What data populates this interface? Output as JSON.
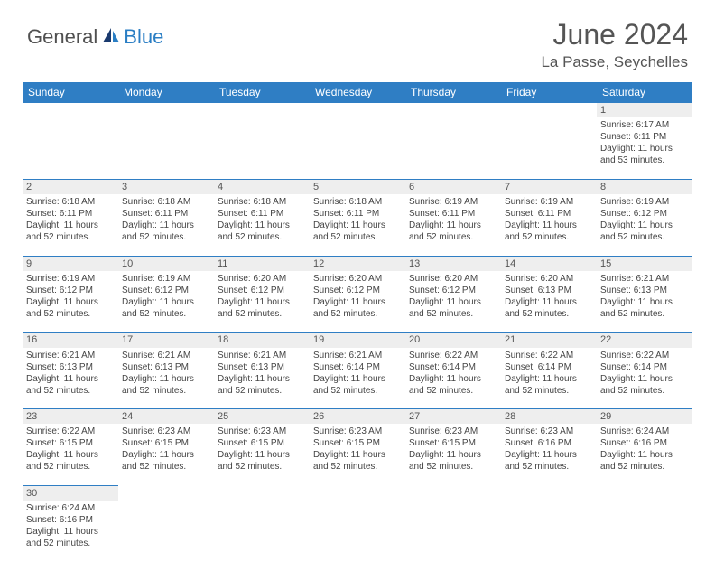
{
  "logo": {
    "part1": "General",
    "part2": "Blue"
  },
  "title": "June 2024",
  "location": "La Passe, Seychelles",
  "colors": {
    "header_bg": "#2f7ec4",
    "header_text": "#ffffff",
    "daynum_bg": "#eeeeee",
    "text": "#444444",
    "logo_gray": "#505050",
    "logo_blue": "#2a7ec4"
  },
  "weekdays": [
    "Sunday",
    "Monday",
    "Tuesday",
    "Wednesday",
    "Thursday",
    "Friday",
    "Saturday"
  ],
  "weeks": [
    [
      null,
      null,
      null,
      null,
      null,
      null,
      {
        "d": "1",
        "sr": "Sunrise: 6:17 AM",
        "ss": "Sunset: 6:11 PM",
        "dl": "Daylight: 11 hours and 53 minutes."
      }
    ],
    [
      {
        "d": "2",
        "sr": "Sunrise: 6:18 AM",
        "ss": "Sunset: 6:11 PM",
        "dl": "Daylight: 11 hours and 52 minutes."
      },
      {
        "d": "3",
        "sr": "Sunrise: 6:18 AM",
        "ss": "Sunset: 6:11 PM",
        "dl": "Daylight: 11 hours and 52 minutes."
      },
      {
        "d": "4",
        "sr": "Sunrise: 6:18 AM",
        "ss": "Sunset: 6:11 PM",
        "dl": "Daylight: 11 hours and 52 minutes."
      },
      {
        "d": "5",
        "sr": "Sunrise: 6:18 AM",
        "ss": "Sunset: 6:11 PM",
        "dl": "Daylight: 11 hours and 52 minutes."
      },
      {
        "d": "6",
        "sr": "Sunrise: 6:19 AM",
        "ss": "Sunset: 6:11 PM",
        "dl": "Daylight: 11 hours and 52 minutes."
      },
      {
        "d": "7",
        "sr": "Sunrise: 6:19 AM",
        "ss": "Sunset: 6:11 PM",
        "dl": "Daylight: 11 hours and 52 minutes."
      },
      {
        "d": "8",
        "sr": "Sunrise: 6:19 AM",
        "ss": "Sunset: 6:12 PM",
        "dl": "Daylight: 11 hours and 52 minutes."
      }
    ],
    [
      {
        "d": "9",
        "sr": "Sunrise: 6:19 AM",
        "ss": "Sunset: 6:12 PM",
        "dl": "Daylight: 11 hours and 52 minutes."
      },
      {
        "d": "10",
        "sr": "Sunrise: 6:19 AM",
        "ss": "Sunset: 6:12 PM",
        "dl": "Daylight: 11 hours and 52 minutes."
      },
      {
        "d": "11",
        "sr": "Sunrise: 6:20 AM",
        "ss": "Sunset: 6:12 PM",
        "dl": "Daylight: 11 hours and 52 minutes."
      },
      {
        "d": "12",
        "sr": "Sunrise: 6:20 AM",
        "ss": "Sunset: 6:12 PM",
        "dl": "Daylight: 11 hours and 52 minutes."
      },
      {
        "d": "13",
        "sr": "Sunrise: 6:20 AM",
        "ss": "Sunset: 6:12 PM",
        "dl": "Daylight: 11 hours and 52 minutes."
      },
      {
        "d": "14",
        "sr": "Sunrise: 6:20 AM",
        "ss": "Sunset: 6:13 PM",
        "dl": "Daylight: 11 hours and 52 minutes."
      },
      {
        "d": "15",
        "sr": "Sunrise: 6:21 AM",
        "ss": "Sunset: 6:13 PM",
        "dl": "Daylight: 11 hours and 52 minutes."
      }
    ],
    [
      {
        "d": "16",
        "sr": "Sunrise: 6:21 AM",
        "ss": "Sunset: 6:13 PM",
        "dl": "Daylight: 11 hours and 52 minutes."
      },
      {
        "d": "17",
        "sr": "Sunrise: 6:21 AM",
        "ss": "Sunset: 6:13 PM",
        "dl": "Daylight: 11 hours and 52 minutes."
      },
      {
        "d": "18",
        "sr": "Sunrise: 6:21 AM",
        "ss": "Sunset: 6:13 PM",
        "dl": "Daylight: 11 hours and 52 minutes."
      },
      {
        "d": "19",
        "sr": "Sunrise: 6:21 AM",
        "ss": "Sunset: 6:14 PM",
        "dl": "Daylight: 11 hours and 52 minutes."
      },
      {
        "d": "20",
        "sr": "Sunrise: 6:22 AM",
        "ss": "Sunset: 6:14 PM",
        "dl": "Daylight: 11 hours and 52 minutes."
      },
      {
        "d": "21",
        "sr": "Sunrise: 6:22 AM",
        "ss": "Sunset: 6:14 PM",
        "dl": "Daylight: 11 hours and 52 minutes."
      },
      {
        "d": "22",
        "sr": "Sunrise: 6:22 AM",
        "ss": "Sunset: 6:14 PM",
        "dl": "Daylight: 11 hours and 52 minutes."
      }
    ],
    [
      {
        "d": "23",
        "sr": "Sunrise: 6:22 AM",
        "ss": "Sunset: 6:15 PM",
        "dl": "Daylight: 11 hours and 52 minutes."
      },
      {
        "d": "24",
        "sr": "Sunrise: 6:23 AM",
        "ss": "Sunset: 6:15 PM",
        "dl": "Daylight: 11 hours and 52 minutes."
      },
      {
        "d": "25",
        "sr": "Sunrise: 6:23 AM",
        "ss": "Sunset: 6:15 PM",
        "dl": "Daylight: 11 hours and 52 minutes."
      },
      {
        "d": "26",
        "sr": "Sunrise: 6:23 AM",
        "ss": "Sunset: 6:15 PM",
        "dl": "Daylight: 11 hours and 52 minutes."
      },
      {
        "d": "27",
        "sr": "Sunrise: 6:23 AM",
        "ss": "Sunset: 6:15 PM",
        "dl": "Daylight: 11 hours and 52 minutes."
      },
      {
        "d": "28",
        "sr": "Sunrise: 6:23 AM",
        "ss": "Sunset: 6:16 PM",
        "dl": "Daylight: 11 hours and 52 minutes."
      },
      {
        "d": "29",
        "sr": "Sunrise: 6:24 AM",
        "ss": "Sunset: 6:16 PM",
        "dl": "Daylight: 11 hours and 52 minutes."
      }
    ],
    [
      {
        "d": "30",
        "sr": "Sunrise: 6:24 AM",
        "ss": "Sunset: 6:16 PM",
        "dl": "Daylight: 11 hours and 52 minutes."
      },
      null,
      null,
      null,
      null,
      null,
      null
    ]
  ]
}
